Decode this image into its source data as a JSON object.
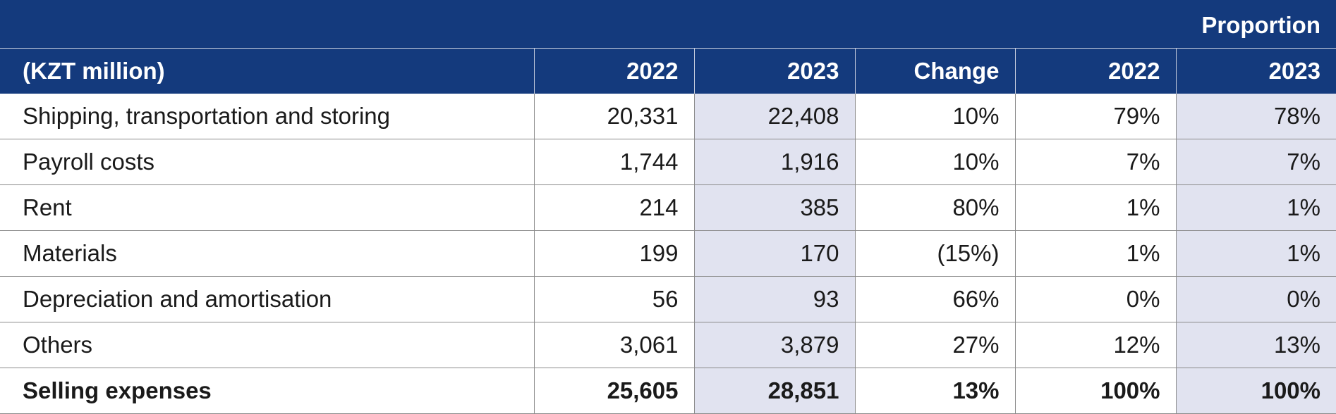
{
  "table": {
    "proportion_label": "Proportion",
    "columns": [
      "(KZT million)",
      "2022",
      "2023",
      "Change",
      "2022",
      "2023"
    ],
    "rows": [
      {
        "label": "Shipping, transportation and storing",
        "v2022": "20,331",
        "v2023": "22,408",
        "change": "10%",
        "p2022": "79%",
        "p2023": "78%"
      },
      {
        "label": "Payroll costs",
        "v2022": "1,744",
        "v2023": "1,916",
        "change": "10%",
        "p2022": "7%",
        "p2023": "7%"
      },
      {
        "label": "Rent",
        "v2022": "214",
        "v2023": "385",
        "change": "80%",
        "p2022": "1%",
        "p2023": "1%"
      },
      {
        "label": "Materials",
        "v2022": "199",
        "v2023": "170",
        "change": "(15%)",
        "p2022": "1%",
        "p2023": "1%"
      },
      {
        "label": "Depreciation and amortisation",
        "v2022": "56",
        "v2023": "93",
        "change": "66%",
        "p2022": "0%",
        "p2023": "0%"
      },
      {
        "label": "Others",
        "v2022": "3,061",
        "v2023": "3,879",
        "change": "27%",
        "p2022": "12%",
        "p2023": "13%"
      }
    ],
    "total": {
      "label": "Selling expenses",
      "v2022": "25,605",
      "v2023": "28,851",
      "change": "13%",
      "p2022": "100%",
      "p2023": "100%"
    }
  },
  "colors": {
    "header_bg": "#143a7d",
    "shaded_col": "#e1e3f0"
  }
}
